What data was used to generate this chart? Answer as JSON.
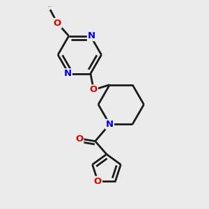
{
  "bg_color": "#ebebeb",
  "bond_color": "#1a1a1a",
  "nitrogen_color": "#0000ee",
  "oxygen_color": "#dd0000",
  "line_width": 2.0,
  "figsize": [
    3.0,
    3.0
  ],
  "dpi": 100,
  "xlim": [
    0,
    10
  ],
  "ylim": [
    0,
    10
  ]
}
